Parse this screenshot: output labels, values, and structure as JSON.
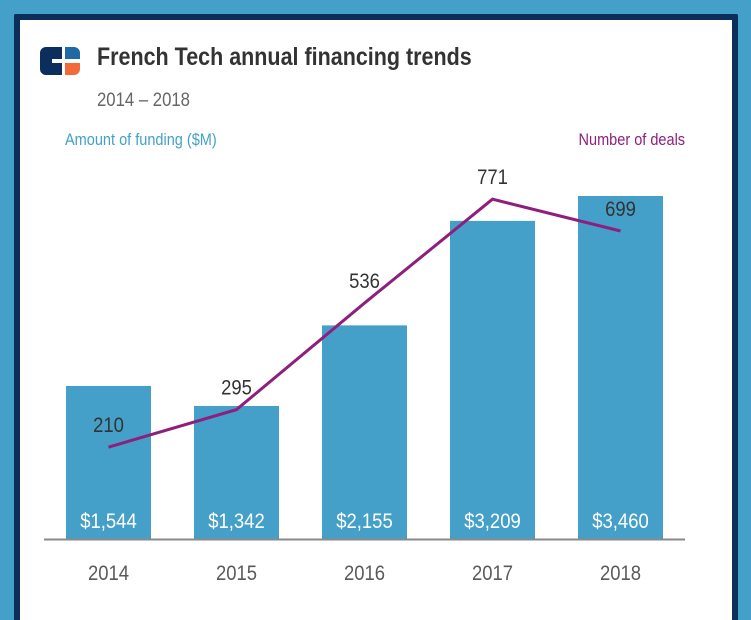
{
  "header": {
    "logo_icon": "french-tech-logo-icon",
    "title": "French Tech annual financing trends",
    "subtitle": "2014 – 2018"
  },
  "colors": {
    "background": "#44a0c8",
    "frame_border": "#0b2e5c",
    "bars": "#44a0c8",
    "line": "#8e1f7e",
    "left_axis_label": "#44a0c8",
    "right_axis_label": "#8e1f7e",
    "logo_dark": "#0b2e5c",
    "logo_blue": "#1f6aa5",
    "logo_orange": "#f26a3a"
  },
  "chart_data": {
    "type": "bar+line",
    "title": "French Tech annual financing trends",
    "subtitle": "2014 – 2018",
    "categories": [
      "2014",
      "2015",
      "2016",
      "2017",
      "2018"
    ],
    "series": [
      {
        "name": "Amount of funding ($M)",
        "type": "bar",
        "axis": "left",
        "values": [
          1544,
          1342,
          2155,
          3209,
          3460
        ],
        "labels": [
          "$1,544",
          "$1,342",
          "$2,155",
          "$3,209",
          "$3,460"
        ]
      },
      {
        "name": "Number of deals",
        "type": "line",
        "axis": "right",
        "values": [
          210,
          295,
          536,
          771,
          699
        ],
        "labels": [
          "210",
          "295",
          "536",
          "771",
          "699"
        ]
      }
    ],
    "ylabel_left": "Amount of funding ($M)",
    "ylabel_right": "Number of deals",
    "ylim_left": [
      0,
      3460
    ],
    "ylim_right": [
      0,
      771
    ],
    "grid": false,
    "legend": "none"
  }
}
